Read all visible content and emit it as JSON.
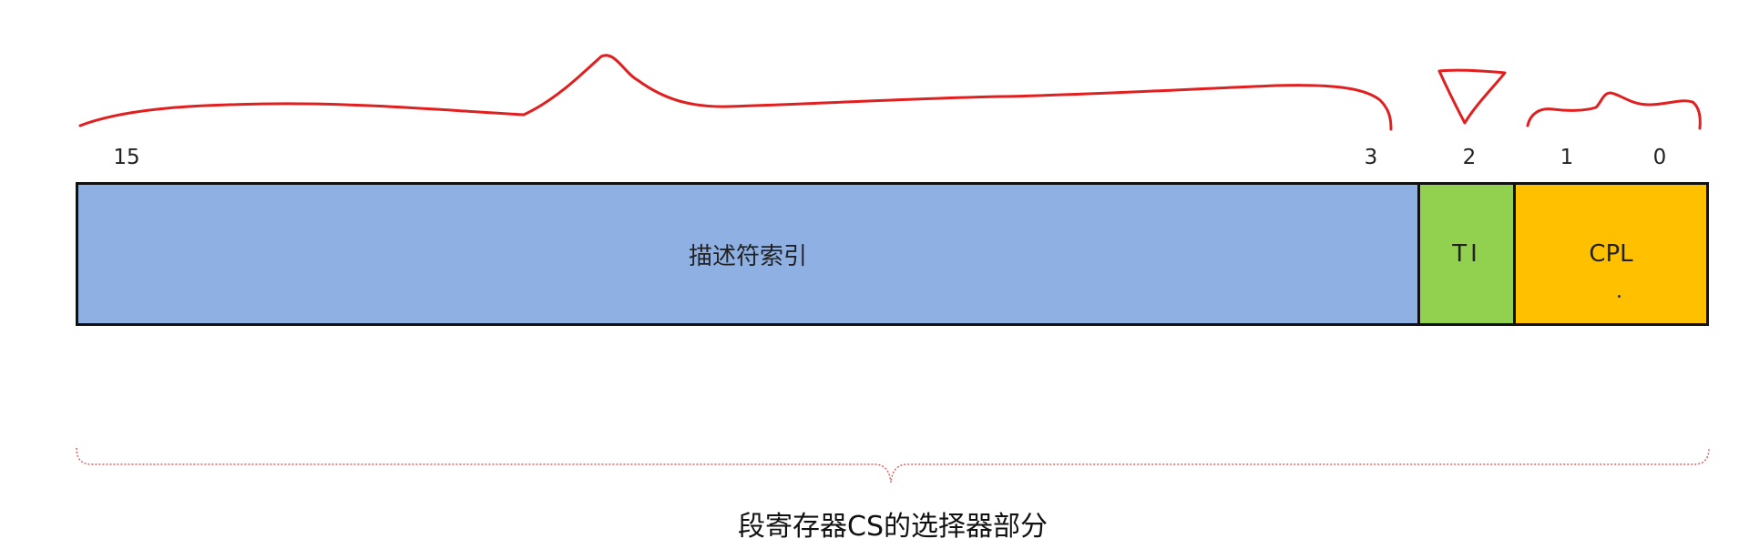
{
  "bit_labels": {
    "b15": "15",
    "b3": "3",
    "b2": "2",
    "b1": "1",
    "b0": "0"
  },
  "fields": {
    "index": "描述符索引",
    "ti": "TI",
    "cpl": "CPL"
  },
  "caption": "段寄存器CS的选择器部分",
  "colors": {
    "index_fill": "#8eb0e3",
    "ti_fill": "#92d050",
    "cpl_fill": "#ffc000",
    "annotation_ink": "#e02020",
    "brace": "#e06060"
  }
}
